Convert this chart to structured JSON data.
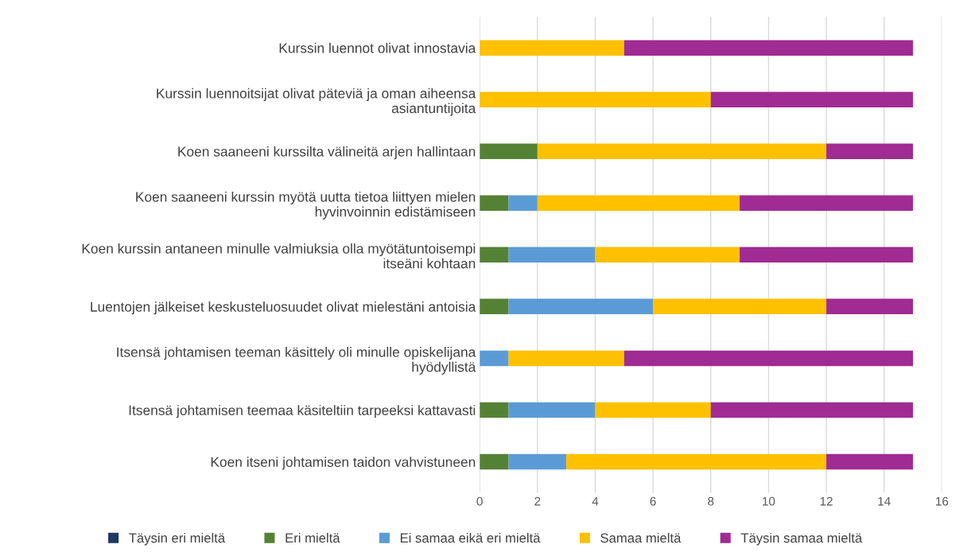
{
  "chart_data": {
    "type": "bar",
    "orientation": "horizontal",
    "stacked": true,
    "categories": [
      "Kurssin luennot olivat innostavia",
      "Kurssin luennoitsijat olivat päteviä ja oman aiheensa\nasiantuntijoita",
      "Koen saaneeni kurssilta välineitä arjen hallintaan",
      "Koen saaneeni kurssin myötä uutta tietoa liittyen mielen\nhyvinvoinnin edistämiseen",
      "Koen kurssin antaneen minulle valmiuksia olla myötätuntoisempi\nitseäni kohtaan",
      "Luentojen jälkeiset keskusteluosuudet olivat mielestäni antoisia",
      "Itsensä johtamisen teeman käsittely oli minulle opiskelijana\nhyödyllistä",
      "Itsensä johtamisen teemaa käsiteltiin tarpeeksi kattavasti",
      "Koen itseni johtamisen taidon vahvistuneen"
    ],
    "series": [
      {
        "name": "Täysin eri mieltä",
        "color": "#1f3864",
        "values": [
          0,
          0,
          0,
          0,
          0,
          0,
          0,
          0,
          0
        ]
      },
      {
        "name": "Eri mieltä",
        "color": "#548235",
        "values": [
          0,
          0,
          2,
          1,
          1,
          1,
          0,
          1,
          1
        ]
      },
      {
        "name": "Ei samaa eikä eri mieltä",
        "color": "#5b9bd5",
        "values": [
          0,
          0,
          0,
          1,
          3,
          5,
          1,
          3,
          2
        ]
      },
      {
        "name": "Samaa mieltä",
        "color": "#ffc000",
        "values": [
          5,
          8,
          10,
          7,
          5,
          6,
          4,
          4,
          9
        ]
      },
      {
        "name": "Täysin samaa mieltä",
        "color": "#a02b93",
        "values": [
          10,
          7,
          3,
          6,
          6,
          3,
          10,
          7,
          3
        ]
      }
    ],
    "xlim": [
      0,
      16
    ],
    "xticks": [
      0,
      2,
      4,
      6,
      8,
      10,
      12,
      14,
      16
    ],
    "grid": "x",
    "legend": "bottom"
  }
}
